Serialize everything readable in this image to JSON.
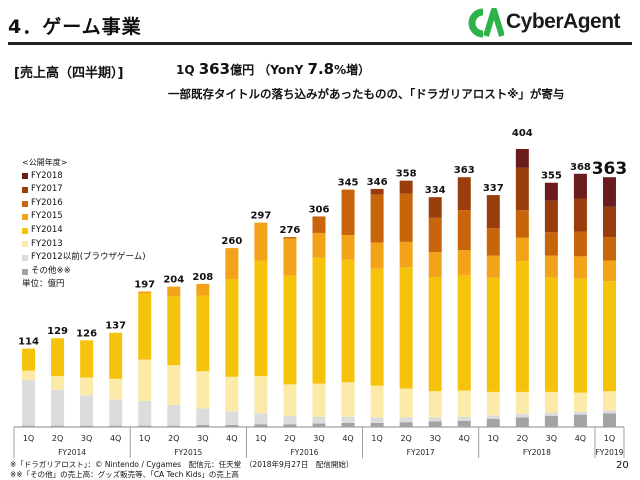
{
  "header": {
    "title": "4．ゲーム事業",
    "logo_text": "CyberAgent"
  },
  "subtitle": {
    "section": "[売上高（四半期）]",
    "q1_prefix": "1Q",
    "q1_value": "363",
    "q1_unit": "億円",
    "yoy_label": "（YonY",
    "yoy_value": "7.8",
    "yoy_suffix": "%増）",
    "line2": "一部既存タイトルの落ち込みがあったものの、「ドラガリアロスト※」が寄与"
  },
  "legend": {
    "header": "<公開年度>",
    "unit": "単位：億円"
  },
  "footnotes": [
    "※「ドラガリアロスト」：© Nintendo / Cygames　配信元：任天堂　（2018年9月27日　配信開始）",
    "※※「その他」の売上高：グッズ販売等、「CA Tech Kids」の売上高"
  ],
  "page_number": "20",
  "colors": {
    "FY2018": "#6b1d1d",
    "FY2017": "#9a3d0c",
    "FY2016": "#c8650a",
    "FY2015": "#f3a31a",
    "FY2014": "#f5c30c",
    "FY2013": "#fbeaa8",
    "FY2012": "#dcdcdc",
    "other": "#a3a3a3",
    "accent_logo": "#2db34a"
  },
  "chart_data": {
    "type": "bar",
    "stacked": true,
    "categories": [
      "1Q",
      "2Q",
      "3Q",
      "4Q",
      "1Q",
      "2Q",
      "3Q",
      "4Q",
      "1Q",
      "2Q",
      "3Q",
      "4Q",
      "1Q",
      "2Q",
      "3Q",
      "4Q",
      "1Q",
      "2Q",
      "3Q",
      "4Q",
      "1Q"
    ],
    "fiscal_years": [
      {
        "label": "FY2014",
        "count": 4
      },
      {
        "label": "FY2015",
        "count": 4
      },
      {
        "label": "FY2016",
        "count": 4
      },
      {
        "label": "FY2017",
        "count": 4
      },
      {
        "label": "FY2018",
        "count": 4
      },
      {
        "label": "FY2019",
        "count": 1
      }
    ],
    "totals": [
      114,
      129,
      126,
      137,
      197,
      204,
      208,
      260,
      297,
      276,
      306,
      345,
      346,
      358,
      334,
      363,
      337,
      404,
      355,
      368,
      363
    ],
    "series": [
      {
        "name": "その他※※",
        "key": "other",
        "values": [
          2,
          2,
          2,
          2,
          2,
          2,
          3,
          3,
          4,
          4,
          5,
          6,
          6,
          7,
          8,
          9,
          12,
          14,
          16,
          18,
          20
        ]
      },
      {
        "name": "FY2012以前(ブラウザゲーム)",
        "key": "FY2012",
        "values": [
          66,
          52,
          44,
          38,
          36,
          30,
          24,
          20,
          16,
          12,
          10,
          9,
          8,
          7,
          6,
          6,
          5,
          5,
          5,
          4,
          4
        ]
      },
      {
        "name": "FY2013",
        "key": "FY2013",
        "values": [
          14,
          20,
          26,
          30,
          60,
          58,
          54,
          50,
          54,
          46,
          48,
          50,
          46,
          42,
          38,
          38,
          34,
          32,
          30,
          28,
          28
        ]
      },
      {
        "name": "FY2014",
        "key": "FY2014",
        "values": [
          32,
          55,
          54,
          67,
          96,
          100,
          110,
          142,
          168,
          158,
          183,
          178,
          170,
          176,
          166,
          168,
          166,
          190,
          166,
          166,
          160
        ]
      },
      {
        "name": "FY2015",
        "key": "FY2015",
        "values": [
          0,
          0,
          0,
          0,
          3,
          14,
          17,
          45,
          55,
          54,
          36,
          36,
          38,
          37,
          36,
          36,
          32,
          34,
          32,
          32,
          30
        ]
      },
      {
        "name": "FY2016",
        "key": "FY2016",
        "values": [
          0,
          0,
          0,
          0,
          0,
          0,
          0,
          0,
          0,
          2,
          24,
          66,
          70,
          70,
          50,
          58,
          40,
          40,
          34,
          36,
          34
        ]
      },
      {
        "name": "FY2017",
        "key": "FY2017",
        "values": [
          0,
          0,
          0,
          0,
          0,
          0,
          0,
          0,
          0,
          0,
          0,
          0,
          8,
          19,
          30,
          48,
          48,
          62,
          46,
          48,
          44
        ]
      },
      {
        "name": "FY2018",
        "key": "FY2018",
        "values": [
          0,
          0,
          0,
          0,
          0,
          0,
          0,
          0,
          0,
          0,
          0,
          0,
          0,
          0,
          0,
          0,
          0,
          27,
          26,
          36,
          43
        ]
      }
    ],
    "highlight_last_label": true,
    "ylim": [
      0,
      420
    ]
  }
}
